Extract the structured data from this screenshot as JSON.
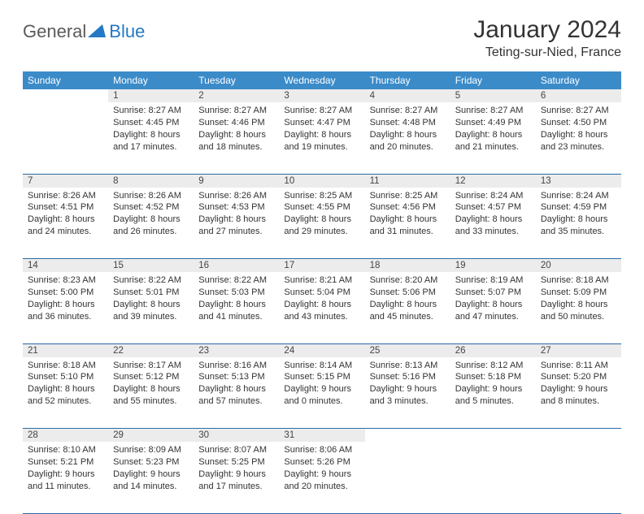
{
  "logo": {
    "general": "General",
    "blue": "Blue"
  },
  "title": "January 2024",
  "location": "Teting-sur-Nied, France",
  "colors": {
    "header_bg": "#3b8bc9",
    "header_text": "#ffffff",
    "daynum_bg": "#ececec",
    "border": "#2a6aa8",
    "logo_blue": "#2478c4",
    "logo_gray": "#5a5a5a",
    "body_text": "#333333"
  },
  "weekdays": [
    "Sunday",
    "Monday",
    "Tuesday",
    "Wednesday",
    "Thursday",
    "Friday",
    "Saturday"
  ],
  "weeks": [
    {
      "nums": [
        "",
        "1",
        "2",
        "3",
        "4",
        "5",
        "6"
      ],
      "cells": [
        null,
        {
          "sunrise": "8:27 AM",
          "sunset": "4:45 PM",
          "daylight": "8 hours and 17 minutes."
        },
        {
          "sunrise": "8:27 AM",
          "sunset": "4:46 PM",
          "daylight": "8 hours and 18 minutes."
        },
        {
          "sunrise": "8:27 AM",
          "sunset": "4:47 PM",
          "daylight": "8 hours and 19 minutes."
        },
        {
          "sunrise": "8:27 AM",
          "sunset": "4:48 PM",
          "daylight": "8 hours and 20 minutes."
        },
        {
          "sunrise": "8:27 AM",
          "sunset": "4:49 PM",
          "daylight": "8 hours and 21 minutes."
        },
        {
          "sunrise": "8:27 AM",
          "sunset": "4:50 PM",
          "daylight": "8 hours and 23 minutes."
        }
      ]
    },
    {
      "nums": [
        "7",
        "8",
        "9",
        "10",
        "11",
        "12",
        "13"
      ],
      "cells": [
        {
          "sunrise": "8:26 AM",
          "sunset": "4:51 PM",
          "daylight": "8 hours and 24 minutes."
        },
        {
          "sunrise": "8:26 AM",
          "sunset": "4:52 PM",
          "daylight": "8 hours and 26 minutes."
        },
        {
          "sunrise": "8:26 AM",
          "sunset": "4:53 PM",
          "daylight": "8 hours and 27 minutes."
        },
        {
          "sunrise": "8:25 AM",
          "sunset": "4:55 PM",
          "daylight": "8 hours and 29 minutes."
        },
        {
          "sunrise": "8:25 AM",
          "sunset": "4:56 PM",
          "daylight": "8 hours and 31 minutes."
        },
        {
          "sunrise": "8:24 AM",
          "sunset": "4:57 PM",
          "daylight": "8 hours and 33 minutes."
        },
        {
          "sunrise": "8:24 AM",
          "sunset": "4:59 PM",
          "daylight": "8 hours and 35 minutes."
        }
      ]
    },
    {
      "nums": [
        "14",
        "15",
        "16",
        "17",
        "18",
        "19",
        "20"
      ],
      "cells": [
        {
          "sunrise": "8:23 AM",
          "sunset": "5:00 PM",
          "daylight": "8 hours and 36 minutes."
        },
        {
          "sunrise": "8:22 AM",
          "sunset": "5:01 PM",
          "daylight": "8 hours and 39 minutes."
        },
        {
          "sunrise": "8:22 AM",
          "sunset": "5:03 PM",
          "daylight": "8 hours and 41 minutes."
        },
        {
          "sunrise": "8:21 AM",
          "sunset": "5:04 PM",
          "daylight": "8 hours and 43 minutes."
        },
        {
          "sunrise": "8:20 AM",
          "sunset": "5:06 PM",
          "daylight": "8 hours and 45 minutes."
        },
        {
          "sunrise": "8:19 AM",
          "sunset": "5:07 PM",
          "daylight": "8 hours and 47 minutes."
        },
        {
          "sunrise": "8:18 AM",
          "sunset": "5:09 PM",
          "daylight": "8 hours and 50 minutes."
        }
      ]
    },
    {
      "nums": [
        "21",
        "22",
        "23",
        "24",
        "25",
        "26",
        "27"
      ],
      "cells": [
        {
          "sunrise": "8:18 AM",
          "sunset": "5:10 PM",
          "daylight": "8 hours and 52 minutes."
        },
        {
          "sunrise": "8:17 AM",
          "sunset": "5:12 PM",
          "daylight": "8 hours and 55 minutes."
        },
        {
          "sunrise": "8:16 AM",
          "sunset": "5:13 PM",
          "daylight": "8 hours and 57 minutes."
        },
        {
          "sunrise": "8:14 AM",
          "sunset": "5:15 PM",
          "daylight": "9 hours and 0 minutes."
        },
        {
          "sunrise": "8:13 AM",
          "sunset": "5:16 PM",
          "daylight": "9 hours and 3 minutes."
        },
        {
          "sunrise": "8:12 AM",
          "sunset": "5:18 PM",
          "daylight": "9 hours and 5 minutes."
        },
        {
          "sunrise": "8:11 AM",
          "sunset": "5:20 PM",
          "daylight": "9 hours and 8 minutes."
        }
      ]
    },
    {
      "nums": [
        "28",
        "29",
        "30",
        "31",
        "",
        "",
        ""
      ],
      "cells": [
        {
          "sunrise": "8:10 AM",
          "sunset": "5:21 PM",
          "daylight": "9 hours and 11 minutes."
        },
        {
          "sunrise": "8:09 AM",
          "sunset": "5:23 PM",
          "daylight": "9 hours and 14 minutes."
        },
        {
          "sunrise": "8:07 AM",
          "sunset": "5:25 PM",
          "daylight": "9 hours and 17 minutes."
        },
        {
          "sunrise": "8:06 AM",
          "sunset": "5:26 PM",
          "daylight": "9 hours and 20 minutes."
        },
        null,
        null,
        null
      ]
    }
  ],
  "labels": {
    "sunrise": "Sunrise: ",
    "sunset": "Sunset: ",
    "daylight": "Daylight: "
  }
}
